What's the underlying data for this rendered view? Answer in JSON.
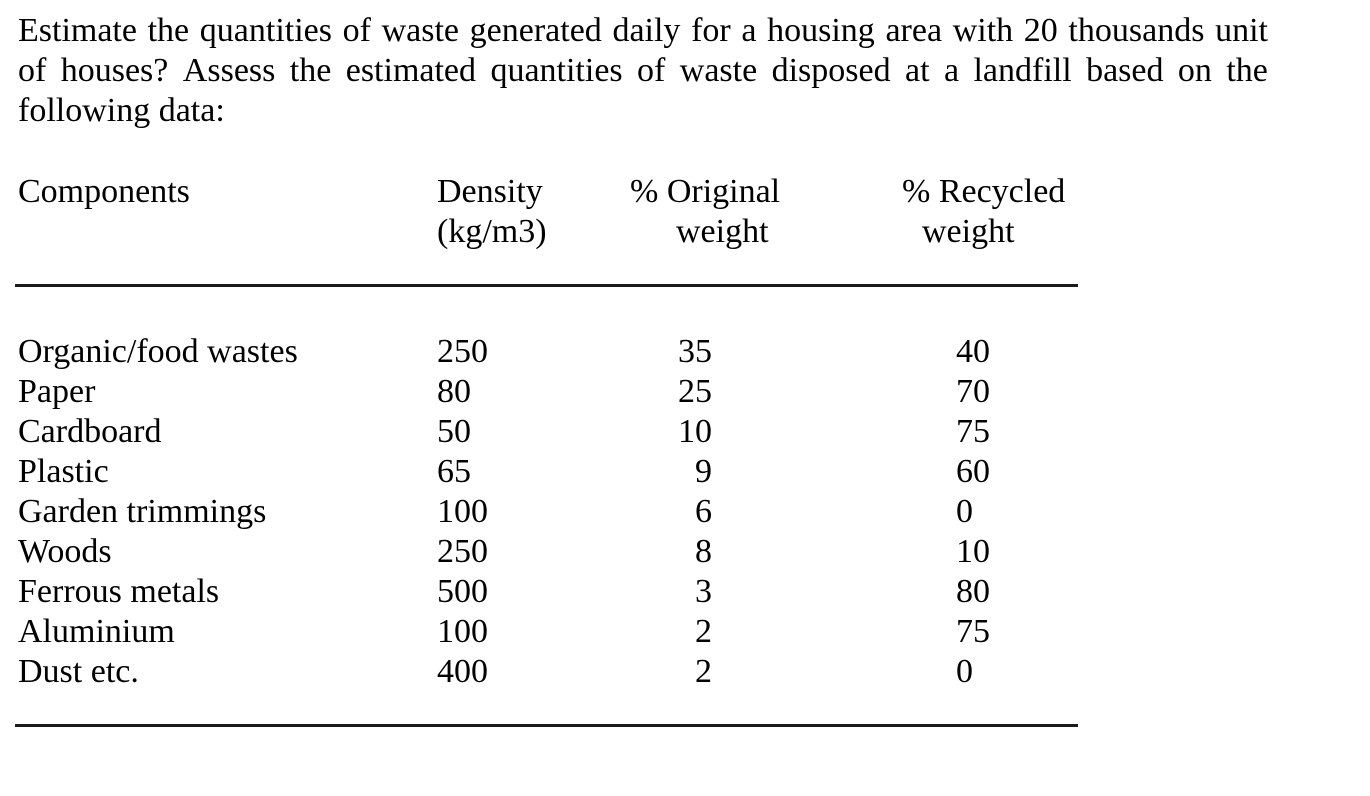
{
  "question": {
    "line1": "Estimate the quantities of waste generated daily for a housing area with 20 thousands unit",
    "line2": "of houses? Assess the estimated quantities of waste disposed at a landfill based on the",
    "line3": "following data:"
  },
  "table": {
    "headers": {
      "components": "Components",
      "density_line1": "Density",
      "density_line2": "(kg/m3)",
      "original_line1": "% Original",
      "original_line2": "weight",
      "recycled_line1": "% Recycled",
      "recycled_line2": "weight"
    },
    "rows": [
      {
        "component": "Organic/food wastes",
        "density": "250",
        "original_pct": "35",
        "recycled_pct": "40"
      },
      {
        "component": "Paper",
        "density": "80",
        "original_pct": "25",
        "recycled_pct": "70"
      },
      {
        "component": "Cardboard",
        "density": "50",
        "original_pct": "10",
        "recycled_pct": "75"
      },
      {
        "component": "Plastic",
        "density": "65",
        "original_pct": "9",
        "recycled_pct": "60"
      },
      {
        "component": "Garden trimmings",
        "density": "100",
        "original_pct": "6",
        "recycled_pct": "0"
      },
      {
        "component": "Woods",
        "density": "250",
        "original_pct": "8",
        "recycled_pct": "10"
      },
      {
        "component": "Ferrous metals",
        "density": "500",
        "original_pct": "3",
        "recycled_pct": "80"
      },
      {
        "component": "Aluminium",
        "density": "100",
        "original_pct": "2",
        "recycled_pct": "75"
      },
      {
        "component": "Dust etc.",
        "density": "400",
        "original_pct": "2",
        "recycled_pct": "0"
      }
    ]
  },
  "colors": {
    "text": "#000000",
    "background": "#ffffff",
    "rule": "#1a1a1a"
  }
}
